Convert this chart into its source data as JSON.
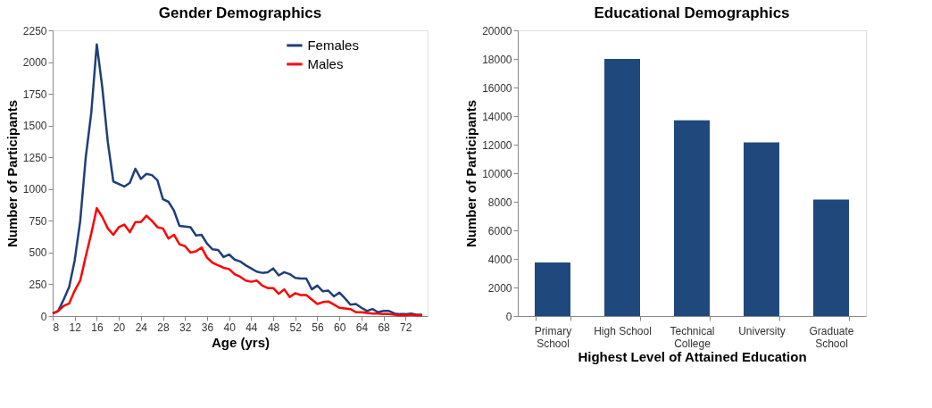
{
  "chart_data": [
    {
      "type": "line",
      "title": "Gender Demographics",
      "xlabel": "Age (yrs)",
      "ylabel": "Number of Participants",
      "x": [
        8,
        9,
        10,
        11,
        12,
        13,
        14,
        15,
        16,
        17,
        18,
        19,
        20,
        21,
        22,
        23,
        24,
        25,
        26,
        27,
        28,
        29,
        30,
        31,
        32,
        33,
        34,
        35,
        36,
        37,
        38,
        39,
        40,
        41,
        42,
        43,
        44,
        45,
        46,
        47,
        48,
        49,
        50,
        51,
        52,
        53,
        54,
        55,
        56,
        57,
        58,
        59,
        60,
        61,
        62,
        63,
        64,
        65,
        66,
        67,
        68,
        69,
        70,
        71,
        72,
        73,
        74,
        75
      ],
      "series": [
        {
          "name": "Females",
          "color": "#1f3f7a",
          "values": [
            20,
            40,
            130,
            230,
            440,
            750,
            1250,
            1600,
            2140,
            1800,
            1370,
            1060,
            1040,
            1020,
            1050,
            1160,
            1080,
            1120,
            1110,
            1070,
            920,
            900,
            830,
            710,
            705,
            700,
            635,
            640,
            570,
            525,
            520,
            465,
            485,
            445,
            430,
            400,
            375,
            350,
            340,
            345,
            375,
            320,
            345,
            330,
            300,
            295,
            295,
            210,
            240,
            195,
            200,
            155,
            185,
            140,
            90,
            95,
            65,
            40,
            55,
            30,
            40,
            40,
            20,
            15,
            15,
            20,
            10,
            10
          ]
        },
        {
          "name": "Males",
          "color": "#ff0000",
          "values": [
            20,
            40,
            80,
            100,
            200,
            280,
            470,
            650,
            850,
            780,
            690,
            640,
            700,
            720,
            660,
            740,
            740,
            790,
            750,
            700,
            690,
            610,
            640,
            565,
            550,
            500,
            510,
            540,
            460,
            420,
            400,
            380,
            370,
            330,
            310,
            280,
            270,
            280,
            240,
            220,
            220,
            175,
            210,
            150,
            180,
            165,
            165,
            130,
            95,
            110,
            115,
            90,
            65,
            60,
            55,
            30,
            30,
            25,
            20,
            20,
            15,
            15,
            10,
            5,
            5,
            10,
            5,
            5
          ]
        }
      ],
      "xlim": [
        8,
        76
      ],
      "xticks": [
        8,
        12,
        16,
        20,
        24,
        28,
        32,
        36,
        40,
        44,
        48,
        52,
        56,
        60,
        64,
        68,
        72
      ],
      "ylim": [
        0,
        2250
      ],
      "yticks": [
        0,
        250,
        500,
        750,
        1000,
        1250,
        1500,
        1750,
        2000,
        2250
      ],
      "grid": false,
      "legend": "top right",
      "marker": "none",
      "line_style": "solid"
    },
    {
      "type": "bar",
      "title": "Educational Demographics",
      "xlabel": "Highest Level of Attained Education",
      "ylabel": "Number of Participants",
      "categories": [
        "Primary School",
        "High School",
        "Technical College",
        "University",
        "Graduate School"
      ],
      "values": [
        3750,
        18000,
        13700,
        12150,
        8150
      ],
      "color": "#1f497d",
      "ylim": [
        0,
        20000
      ],
      "yticks": [
        0,
        2000,
        4000,
        6000,
        8000,
        10000,
        12000,
        14000,
        16000,
        18000,
        20000
      ],
      "grid": false
    }
  ]
}
